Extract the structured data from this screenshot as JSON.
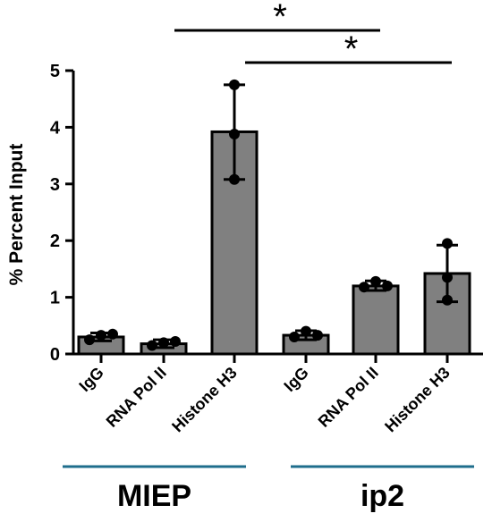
{
  "chart_data": {
    "type": "bar",
    "ylabel": "% Percent Input",
    "ylim": [
      0,
      5
    ],
    "yticks": [
      "0",
      "1",
      "2",
      "3",
      "4",
      "5"
    ],
    "categories": [
      "IgG",
      "RNA Pol II",
      "Histone H3",
      "IgG",
      "RNA Pol II",
      "Histone H3"
    ],
    "values": [
      0.3,
      0.18,
      3.92,
      0.33,
      1.2,
      1.42
    ],
    "error_upper": [
      0.37,
      0.25,
      4.75,
      0.41,
      1.29,
      1.92
    ],
    "error_lower": [
      0.23,
      0.11,
      3.08,
      0.25,
      1.12,
      0.92
    ],
    "points": [
      [
        0.25,
        0.33,
        0.35
      ],
      [
        0.15,
        0.2,
        0.22
      ],
      [
        3.08,
        3.88,
        4.75
      ],
      [
        0.3,
        0.4,
        0.33
      ],
      [
        1.18,
        1.28,
        1.2
      ],
      [
        0.95,
        1.35,
        1.95
      ]
    ],
    "groups": [
      {
        "label": "MIEP",
        "category_indices": [
          0,
          1,
          2
        ]
      },
      {
        "label": "ip2",
        "category_indices": [
          3,
          4,
          5
        ]
      }
    ],
    "significance": [
      {
        "from": 1,
        "to": 4,
        "label": "*"
      },
      {
        "from": 2,
        "to": 5,
        "label": "*"
      }
    ],
    "colors": {
      "bar": "#808080",
      "group_line": "#1f6e8c"
    }
  }
}
